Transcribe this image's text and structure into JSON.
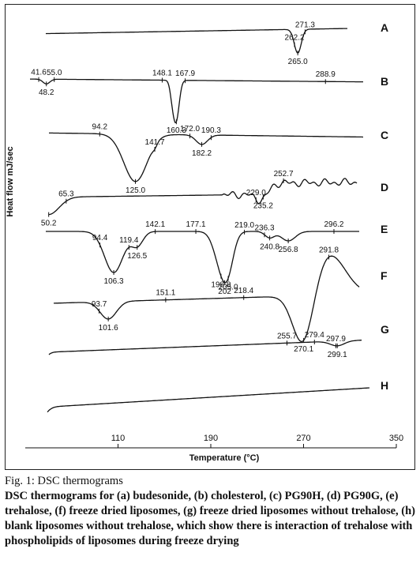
{
  "chart_data": {
    "type": "line",
    "xlabel": "Temperature (°C)",
    "ylabel": "Heat flow mJ/sec",
    "xticks": [
      110,
      190,
      270,
      350
    ],
    "xlim": [
      30,
      350
    ],
    "series": [
      {
        "name": "A",
        "annotations": [
          {
            "t": 262.2,
            "label": "262.2",
            "pos": "above"
          },
          {
            "t": 271.3,
            "label": "271.3",
            "pos": "above"
          },
          {
            "t": 265.0,
            "label": "265.0",
            "pos": "below"
          }
        ]
      },
      {
        "name": "B",
        "annotations": [
          {
            "t": 41.6,
            "label": "41.6",
            "pos": "above"
          },
          {
            "t": 55.0,
            "label": "55.0",
            "pos": "above"
          },
          {
            "t": 48.2,
            "label": "48.2",
            "pos": "below"
          },
          {
            "t": 148.1,
            "label": "148.1",
            "pos": "above"
          },
          {
            "t": 167.9,
            "label": "167.9",
            "pos": "above"
          },
          {
            "t": 160.3,
            "label": "160.3",
            "pos": "below"
          },
          {
            "t": 288.9,
            "label": "288.9",
            "pos": "above"
          }
        ]
      },
      {
        "name": "C",
        "annotations": [
          {
            "t": 94.2,
            "label": "94.2",
            "pos": "above"
          },
          {
            "t": 141.7,
            "label": "141.7",
            "pos": "above"
          },
          {
            "t": 172.0,
            "label": "172.0",
            "pos": "above"
          },
          {
            "t": 190.3,
            "label": "190.3",
            "pos": "above"
          },
          {
            "t": 125.0,
            "label": "125.0",
            "pos": "below"
          },
          {
            "t": 182.2,
            "label": "182.2",
            "pos": "below"
          }
        ]
      },
      {
        "name": "D",
        "annotations": [
          {
            "t": 65.3,
            "label": "65.3",
            "pos": "above"
          },
          {
            "t": 50.2,
            "label": "50.2",
            "pos": "below"
          },
          {
            "t": 229.0,
            "label": "229.0",
            "pos": "above"
          },
          {
            "t": 252.7,
            "label": "252.7",
            "pos": "above"
          },
          {
            "t": 235.2,
            "label": "235.2",
            "pos": "below"
          }
        ]
      },
      {
        "name": "E",
        "annotations": [
          {
            "t": 94.4,
            "label": "94.4",
            "pos": "above"
          },
          {
            "t": 119.4,
            "label": "119.4",
            "pos": "above"
          },
          {
            "t": 142.1,
            "label": "142.1",
            "pos": "above"
          },
          {
            "t": 177.1,
            "label": "177.1",
            "pos": "above"
          },
          {
            "t": 219.0,
            "label": "219.0",
            "pos": "above"
          },
          {
            "t": 236.3,
            "label": "236.3",
            "pos": "above"
          },
          {
            "t": 296.2,
            "label": "296.2",
            "pos": "above"
          },
          {
            "t": 106.3,
            "label": "106.3",
            "pos": "below"
          },
          {
            "t": 126.5,
            "label": "126.5",
            "pos": "below"
          },
          {
            "t": 202.0,
            "label": "202",
            "pos": "below"
          },
          {
            "t": 198.8,
            "label": "198.8",
            "pos": "below"
          },
          {
            "t": 205.0,
            "label": "205.0",
            "pos": "below"
          },
          {
            "t": 240.8,
            "label": "240.8",
            "pos": "below"
          },
          {
            "t": 256.8,
            "label": "256.8",
            "pos": "below"
          }
        ]
      },
      {
        "name": "F",
        "annotations": [
          {
            "t": 93.7,
            "label": "93.7",
            "pos": "above"
          },
          {
            "t": 151.1,
            "label": "151.1",
            "pos": "above"
          },
          {
            "t": 218.4,
            "label": "218.4",
            "pos": "above"
          },
          {
            "t": 291.8,
            "label": "291.8",
            "pos": "above"
          },
          {
            "t": 101.6,
            "label": "101.6",
            "pos": "below"
          },
          {
            "t": 270.1,
            "label": "270.1",
            "pos": "below"
          }
        ]
      },
      {
        "name": "G",
        "annotations": [
          {
            "t": 255.7,
            "label": "255.7",
            "pos": "above"
          },
          {
            "t": 279.4,
            "label": "279.4",
            "pos": "above"
          },
          {
            "t": 297.9,
            "label": "297.9",
            "pos": "above"
          },
          {
            "t": 299.1,
            "label": "299.1",
            "pos": "below"
          }
        ]
      },
      {
        "name": "H",
        "annotations": []
      }
    ]
  },
  "caption": {
    "title": "Fig. 1: DSC thermograms",
    "body": "DSC thermograms for (a) budesonide, (b) cholesterol, (c) PG90H, (d) PG90G, (e) trehalose, (f) freeze dried liposomes, (g) freeze dried liposomes without trehalose, (h) blank liposomes without trehalose, which show there is interaction of trehalose with phospholipids of liposomes during freeze drying"
  }
}
